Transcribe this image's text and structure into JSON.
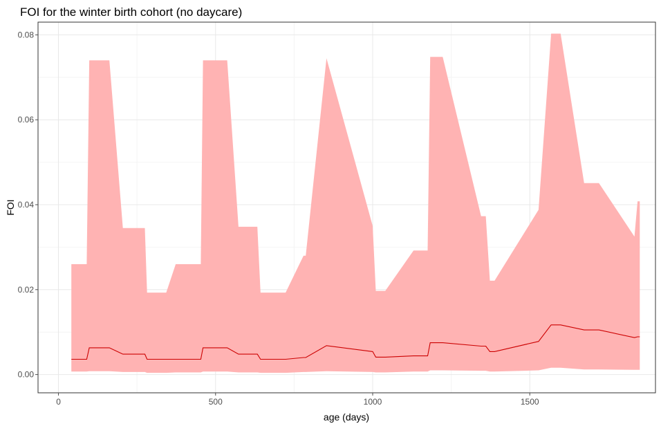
{
  "chart_data": {
    "type": "area",
    "title": "FOI for the winter birth cohort (no daycare)",
    "xlabel": "age (days)",
    "ylabel": "FOI",
    "xlim": [
      -65,
      1900
    ],
    "ylim": [
      -0.0043,
      0.083
    ],
    "xticks": [
      0,
      500,
      1000,
      1500
    ],
    "xtick_labels": [
      "0",
      "500",
      "1000",
      "1500"
    ],
    "yticks": [
      0.0,
      0.02,
      0.04,
      0.06,
      0.08
    ],
    "ytick_labels": [
      "0.00",
      "0.02",
      "0.04",
      "0.06",
      "0.08"
    ],
    "grid": true,
    "legend": "none",
    "colors": {
      "line": "#cc0000",
      "band": "#ffb3b3",
      "grid_major": "#e8e8e8",
      "grid_minor": "#f4f4f4",
      "panel_border": "#333333",
      "tick": "#4d4d4d"
    },
    "series": [
      {
        "kind": "band",
        "x": [
          41,
          90,
          98,
          162,
          205,
          275,
          282,
          343,
          373,
          453,
          460,
          537,
          573,
          633,
          643,
          723,
          780,
          787,
          853,
          1000,
          1010,
          1040,
          1130,
          1175,
          1183,
          1223,
          1345,
          1360,
          1373,
          1388,
          1528,
          1568,
          1598,
          1673,
          1720,
          1833,
          1843,
          1850
        ],
        "upper": [
          0.026,
          0.026,
          0.074,
          0.074,
          0.0345,
          0.0345,
          0.0193,
          0.0193,
          0.026,
          0.026,
          0.074,
          0.074,
          0.0348,
          0.0348,
          0.0193,
          0.0193,
          0.028,
          0.028,
          0.0745,
          0.035,
          0.0197,
          0.0197,
          0.0292,
          0.0292,
          0.0748,
          0.0748,
          0.0373,
          0.0373,
          0.0221,
          0.0221,
          0.0388,
          0.0803,
          0.0803,
          0.0451,
          0.0451,
          0.0325,
          0.0408,
          0.0408
        ],
        "lower": [
          0.0007,
          0.0007,
          0.0008,
          0.0008,
          0.0006,
          0.0006,
          0.0004,
          0.0004,
          0.0005,
          0.0005,
          0.0007,
          0.0007,
          0.0005,
          0.0005,
          0.0004,
          0.0004,
          0.0006,
          0.0006,
          0.0008,
          0.0006,
          0.0005,
          0.0005,
          0.0007,
          0.0007,
          0.001,
          0.001,
          0.0009,
          0.0009,
          0.0007,
          0.0007,
          0.001,
          0.0016,
          0.0016,
          0.0012,
          0.0012,
          0.0011,
          0.0011,
          0.0011
        ]
      },
      {
        "kind": "line",
        "x": [
          41,
          90,
          98,
          162,
          205,
          275,
          282,
          343,
          373,
          453,
          460,
          537,
          573,
          633,
          643,
          723,
          780,
          787,
          853,
          1000,
          1010,
          1040,
          1130,
          1175,
          1183,
          1223,
          1345,
          1360,
          1373,
          1388,
          1528,
          1568,
          1598,
          1673,
          1720,
          1833,
          1843,
          1850
        ],
        "y": [
          0.0036,
          0.0036,
          0.0063,
          0.0063,
          0.0048,
          0.0048,
          0.0036,
          0.0036,
          0.0036,
          0.0036,
          0.0063,
          0.0063,
          0.0048,
          0.0048,
          0.0036,
          0.0036,
          0.004,
          0.004,
          0.0068,
          0.0054,
          0.0041,
          0.0041,
          0.0044,
          0.0044,
          0.0075,
          0.0075,
          0.0067,
          0.0067,
          0.0054,
          0.0054,
          0.0078,
          0.0117,
          0.0117,
          0.0105,
          0.0105,
          0.0087,
          0.0089,
          0.0089
        ]
      }
    ]
  }
}
